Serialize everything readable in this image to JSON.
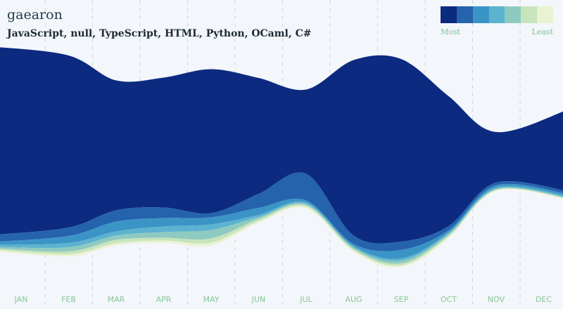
{
  "header": {
    "title": "gaearon",
    "subtitle": "JavaScript, null, TypeScript, HTML, Python, OCaml, C#"
  },
  "legend": {
    "most_label": "Most",
    "least_label": "Least",
    "colors": [
      "#0c2a80",
      "#2563ad",
      "#3b94c6",
      "#5cb3cf",
      "#8fcac0",
      "#c8e4bc",
      "#e9f3d3"
    ]
  },
  "chart_data": {
    "type": "area",
    "title": "gaearon",
    "subtitle": "JavaScript, null, TypeScript, HTML, Python, OCaml, C#",
    "x": [
      "JAN",
      "FEB",
      "MAR",
      "APR",
      "MAY",
      "JUN",
      "JUL",
      "AUG",
      "SEP",
      "OCT",
      "NOV",
      "DEC"
    ],
    "stacked": true,
    "layout": "streamgraph",
    "series": [
      {
        "name": "JavaScript",
        "color": "#0c2a80",
        "values": [
          268,
          245,
          185,
          185,
          205,
          165,
          120,
          250,
          260,
          185,
          72,
          118
        ]
      },
      {
        "name": "null",
        "color": "#2563ad",
        "values": [
          10,
          12,
          16,
          15,
          6,
          20,
          38,
          12,
          12,
          6,
          4,
          4
        ]
      },
      {
        "name": "TypeScript",
        "color": "#3b94c6",
        "values": [
          4,
          10,
          14,
          12,
          10,
          10,
          3,
          3,
          12,
          3,
          3,
          3
        ]
      },
      {
        "name": "HTML",
        "color": "#5cb3cf",
        "values": [
          3,
          6,
          6,
          8,
          8,
          3,
          2,
          2,
          3,
          2,
          2,
          2
        ]
      },
      {
        "name": "Python",
        "color": "#8fcac0",
        "values": [
          2,
          6,
          6,
          8,
          12,
          3,
          2,
          2,
          4,
          2,
          1,
          1
        ]
      },
      {
        "name": "OCaml",
        "color": "#c8e4bc",
        "values": [
          2,
          4,
          5,
          4,
          6,
          3,
          2,
          2,
          3,
          2,
          1,
          1
        ]
      },
      {
        "name": "C#",
        "color": "#e9f3d3",
        "values": [
          2,
          3,
          3,
          3,
          4,
          2,
          2,
          2,
          2,
          2,
          1,
          1
        ]
      }
    ],
    "legend_position": "top-right",
    "grid": "vertical-dashed"
  }
}
